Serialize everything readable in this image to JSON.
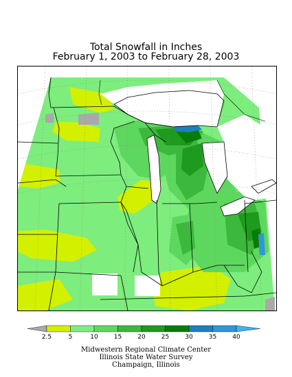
{
  "title": {
    "line1": "Total Snowfall in Inches",
    "line2": "February 1, 2003 to February 28, 2003"
  },
  "legend": {
    "ticks": [
      "2.5",
      "5",
      "10",
      "15",
      "20",
      "25",
      "30",
      "35",
      "40"
    ],
    "colors": {
      "below_2_5": "#a9a9a9",
      "2_5_to_5": "#d2f000",
      "5_to_10": "#7ded7d",
      "10_to_15": "#5ed75e",
      "15_to_20": "#3cb93c",
      "20_to_25": "#1e9a1e",
      "25_to_30": "#077d07",
      "30_to_35": "#1c7fbf",
      "35_to_40": "#2e96d9",
      "above_40": "#3fb5ef"
    }
  },
  "credits": {
    "line1": "Midwestern Regional Climate Center",
    "line2": "Illinois State Water Survey",
    "line3": "Champaign, Illinois"
  },
  "map": {
    "no_data_color": "#ffffff",
    "lake_color": "#ffffff",
    "boundary_color": "#000000",
    "graticule_color": "#888888"
  }
}
